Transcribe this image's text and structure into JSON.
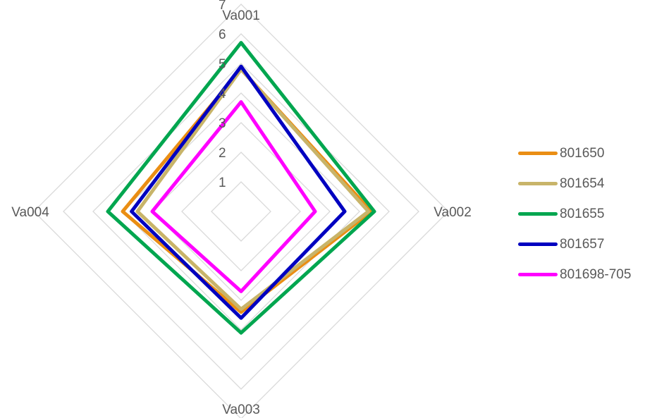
{
  "chart_data": {
    "type": "radar",
    "axes": [
      "Va001",
      "Va002",
      "Va003",
      "Va004"
    ],
    "rlim": [
      0,
      7
    ],
    "ticks": [
      "1",
      "2",
      "3",
      "4",
      "5",
      "6",
      "7"
    ],
    "grid": true,
    "legend_position": "right",
    "series": [
      {
        "name": "801650",
        "color": "#EA8E14",
        "values": [
          4.8,
          4.4,
          3.4,
          4.0
        ]
      },
      {
        "name": "801654",
        "color": "#C8B469",
        "values": [
          4.8,
          4.3,
          3.3,
          3.5
        ]
      },
      {
        "name": "801655",
        "color": "#00A64F",
        "values": [
          5.7,
          4.5,
          4.1,
          4.5
        ]
      },
      {
        "name": "801657",
        "color": "#0000C0",
        "values": [
          4.9,
          3.5,
          3.6,
          3.7
        ]
      },
      {
        "name": "801698-705",
        "color": "#FF00FF",
        "values": [
          3.7,
          2.5,
          2.7,
          3.0
        ]
      }
    ]
  }
}
